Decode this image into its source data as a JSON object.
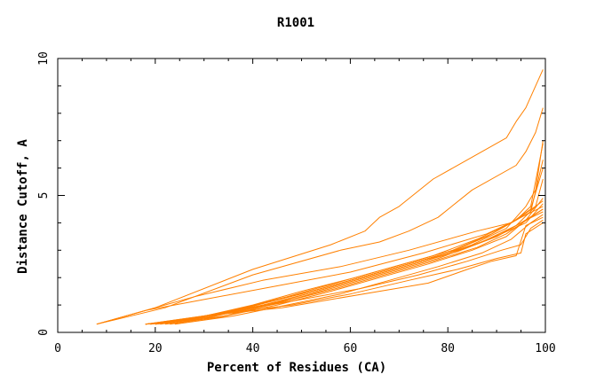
{
  "chart_data": {
    "type": "line",
    "title": "R1001",
    "xlabel": "Percent of Residues (CA)",
    "ylabel": "Distance Cutoff, A",
    "xlim": [
      0,
      100
    ],
    "ylim": [
      0,
      10
    ],
    "x_ticks": [
      0,
      20,
      40,
      60,
      80,
      100
    ],
    "y_ticks": [
      0,
      5,
      10
    ],
    "grid": false,
    "legend": "none",
    "line_color": "#ff8000",
    "series": [
      {
        "points": [
          [
            8,
            0.3
          ],
          [
            20,
            0.9
          ],
          [
            40,
            2.3
          ],
          [
            56,
            3.2
          ],
          [
            63,
            3.7
          ],
          [
            66,
            4.2
          ],
          [
            70,
            4.6
          ],
          [
            77,
            5.6
          ],
          [
            84,
            6.3
          ],
          [
            92,
            7.1
          ],
          [
            94,
            7.7
          ],
          [
            96,
            8.2
          ],
          [
            98,
            9.0
          ],
          [
            99.5,
            9.6
          ]
        ]
      },
      {
        "points": [
          [
            8,
            0.3
          ],
          [
            22,
            0.9
          ],
          [
            40,
            2.1
          ],
          [
            58,
            3.0
          ],
          [
            66,
            3.3
          ],
          [
            72,
            3.7
          ],
          [
            78,
            4.2
          ],
          [
            85,
            5.2
          ],
          [
            94,
            6.1
          ],
          [
            96,
            6.6
          ],
          [
            98,
            7.3
          ],
          [
            99.5,
            8.2
          ]
        ]
      },
      {
        "points": [
          [
            8,
            0.3
          ],
          [
            18,
            0.8
          ],
          [
            30,
            1.2
          ],
          [
            45,
            1.7
          ],
          [
            60,
            2.2
          ],
          [
            75,
            2.9
          ],
          [
            88,
            3.6
          ],
          [
            94,
            4.1
          ],
          [
            97,
            4.6
          ],
          [
            99.5,
            6.9
          ]
        ]
      },
      {
        "points": [
          [
            8,
            0.3
          ],
          [
            16,
            0.7
          ],
          [
            28,
            1.3
          ],
          [
            42,
            1.9
          ],
          [
            58,
            2.4
          ],
          [
            72,
            3.0
          ],
          [
            86,
            3.7
          ],
          [
            93,
            4.0
          ],
          [
            97,
            4.4
          ],
          [
            99.5,
            6.3
          ]
        ]
      },
      {
        "points": [
          [
            18,
            0.3
          ],
          [
            25,
            0.45
          ],
          [
            35,
            0.75
          ],
          [
            45,
            1.1
          ],
          [
            55,
            1.6
          ],
          [
            65,
            2.1
          ],
          [
            75,
            2.6
          ],
          [
            85,
            3.2
          ],
          [
            92,
            3.8
          ],
          [
            96,
            4.6
          ],
          [
            98,
            5.2
          ],
          [
            99.5,
            7.0
          ]
        ]
      },
      {
        "points": [
          [
            18,
            0.3
          ],
          [
            26,
            0.45
          ],
          [
            37,
            0.85
          ],
          [
            47,
            1.3
          ],
          [
            57,
            1.8
          ],
          [
            67,
            2.3
          ],
          [
            77,
            2.8
          ],
          [
            86,
            3.4
          ],
          [
            93,
            4.0
          ],
          [
            97,
            4.5
          ],
          [
            99.5,
            6.0
          ]
        ]
      },
      {
        "points": [
          [
            18,
            0.3
          ],
          [
            27,
            0.45
          ],
          [
            38,
            0.8
          ],
          [
            48,
            1.2
          ],
          [
            58,
            1.7
          ],
          [
            68,
            2.2
          ],
          [
            78,
            2.7
          ],
          [
            87,
            3.3
          ],
          [
            94,
            3.9
          ],
          [
            98,
            4.6
          ],
          [
            99.5,
            5.6
          ]
        ]
      },
      {
        "points": [
          [
            19,
            0.3
          ],
          [
            28,
            0.5
          ],
          [
            38,
            0.9
          ],
          [
            50,
            1.4
          ],
          [
            60,
            1.9
          ],
          [
            70,
            2.4
          ],
          [
            80,
            2.9
          ],
          [
            88,
            3.5
          ],
          [
            94,
            4.1
          ],
          [
            99.5,
            4.8
          ]
        ]
      },
      {
        "points": [
          [
            19,
            0.3
          ],
          [
            29,
            0.55
          ],
          [
            40,
            1.0
          ],
          [
            50,
            1.5
          ],
          [
            61,
            2.0
          ],
          [
            71,
            2.5
          ],
          [
            81,
            3.0
          ],
          [
            89,
            3.6
          ],
          [
            95,
            4.2
          ],
          [
            99.5,
            4.6
          ]
        ]
      },
      {
        "points": [
          [
            20,
            0.3
          ],
          [
            30,
            0.5
          ],
          [
            41,
            0.95
          ],
          [
            52,
            1.45
          ],
          [
            62,
            1.95
          ],
          [
            72,
            2.45
          ],
          [
            82,
            2.95
          ],
          [
            90,
            3.5
          ],
          [
            95,
            4.0
          ],
          [
            99.5,
            4.5
          ]
        ]
      },
      {
        "points": [
          [
            20,
            0.3
          ],
          [
            31,
            0.55
          ],
          [
            42,
            1.05
          ],
          [
            53,
            1.55
          ],
          [
            63,
            2.05
          ],
          [
            73,
            2.55
          ],
          [
            83,
            3.05
          ],
          [
            90,
            3.5
          ],
          [
            96,
            4.1
          ],
          [
            99.5,
            4.4
          ]
        ]
      },
      {
        "points": [
          [
            21,
            0.3
          ],
          [
            32,
            0.6
          ],
          [
            43,
            1.1
          ],
          [
            54,
            1.6
          ],
          [
            64,
            2.1
          ],
          [
            74,
            2.6
          ],
          [
            84,
            3.1
          ],
          [
            91,
            3.6
          ],
          [
            96,
            4.0
          ],
          [
            99.5,
            4.7
          ]
        ]
      },
      {
        "points": [
          [
            22,
            0.3
          ],
          [
            33,
            0.55
          ],
          [
            45,
            1.0
          ],
          [
            56,
            1.5
          ],
          [
            66,
            2.0
          ],
          [
            76,
            2.5
          ],
          [
            85,
            3.0
          ],
          [
            92,
            3.5
          ],
          [
            96,
            4.1
          ],
          [
            99.5,
            4.9
          ]
        ]
      },
      {
        "points": [
          [
            23,
            0.3
          ],
          [
            34,
            0.6
          ],
          [
            46,
            1.1
          ],
          [
            57,
            1.6
          ],
          [
            67,
            2.1
          ],
          [
            77,
            2.6
          ],
          [
            86,
            3.1
          ],
          [
            92,
            3.6
          ],
          [
            97,
            4.2
          ],
          [
            99.5,
            4.5
          ]
        ]
      },
      {
        "points": [
          [
            24,
            0.3
          ],
          [
            36,
            0.6
          ],
          [
            47,
            1.0
          ],
          [
            58,
            1.4
          ],
          [
            68,
            1.9
          ],
          [
            78,
            2.4
          ],
          [
            87,
            2.9
          ],
          [
            93,
            3.4
          ],
          [
            97,
            4.0
          ],
          [
            99.5,
            4.3
          ]
        ]
      },
      {
        "points": [
          [
            18,
            0.3
          ],
          [
            30,
            0.6
          ],
          [
            46,
            0.9
          ],
          [
            56,
            1.2
          ],
          [
            66,
            1.5
          ],
          [
            76,
            1.8
          ],
          [
            84,
            2.3
          ],
          [
            89,
            2.6
          ],
          [
            94,
            2.8
          ],
          [
            96,
            3.9
          ],
          [
            99.5,
            4.2
          ]
        ]
      },
      {
        "points": [
          [
            18,
            0.3
          ],
          [
            32,
            0.65
          ],
          [
            48,
            1.0
          ],
          [
            60,
            1.4
          ],
          [
            72,
            1.9
          ],
          [
            82,
            2.3
          ],
          [
            90,
            2.7
          ],
          [
            95,
            2.9
          ],
          [
            96,
            3.6
          ],
          [
            99.5,
            4.0
          ]
        ]
      },
      {
        "points": [
          [
            20,
            0.3
          ],
          [
            34,
            0.7
          ],
          [
            50,
            1.2
          ],
          [
            62,
            1.6
          ],
          [
            74,
            2.1
          ],
          [
            84,
            2.6
          ],
          [
            91,
            3.0
          ],
          [
            95,
            3.2
          ],
          [
            97,
            3.8
          ],
          [
            99.5,
            4.1
          ]
        ]
      }
    ]
  }
}
